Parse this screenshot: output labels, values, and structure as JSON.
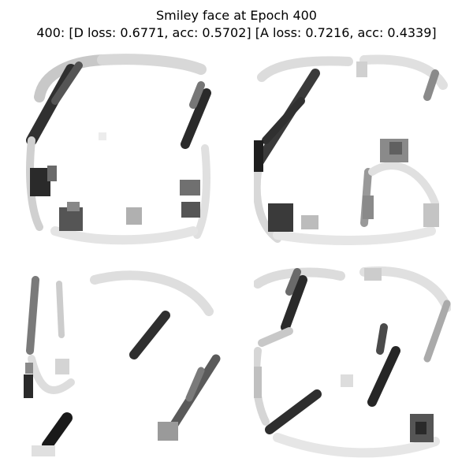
{
  "figure": {
    "title_line1": "Smiley face at Epoch 400",
    "title_line2": "400: [D loss: 0.6771, acc: 0.5702]  [A loss: 0.7216, acc: 0.4339]"
  },
  "image_grid": {
    "rows": 2,
    "cols": 2,
    "colormap": "grayscale, white = low, black = high",
    "panels": [
      {
        "subject": "generated face sample 1"
      },
      {
        "subject": "generated face sample 2"
      },
      {
        "subject": "generated face sample 3"
      },
      {
        "subject": "generated face sample 4"
      }
    ]
  }
}
